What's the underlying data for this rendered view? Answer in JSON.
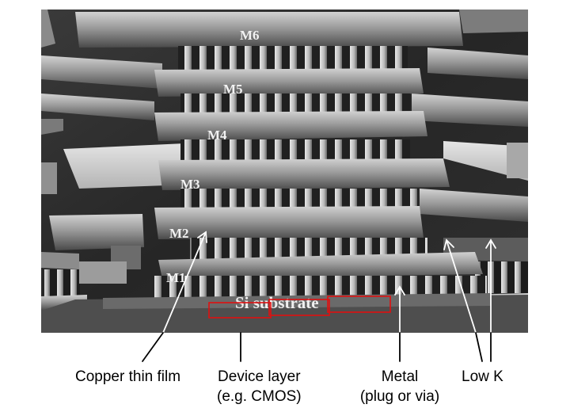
{
  "micrograph": {
    "metal_layers": [
      "M6",
      "M5",
      "M4",
      "M3",
      "M2",
      "M1"
    ],
    "substrate_label": "Si substrate"
  },
  "captions": {
    "copper_thin_film": "Copper thin film",
    "device_layer": "Device layer",
    "device_layer_example": "(e.g. CMOS)",
    "metal": "Metal",
    "metal_detail": "(plug or via)",
    "low_k": "Low K"
  },
  "colors": {
    "highlight_box": "#e01010",
    "arrow": "#ffffff",
    "leader_line": "#000000",
    "micrograph_background": "#2a2a2a"
  }
}
